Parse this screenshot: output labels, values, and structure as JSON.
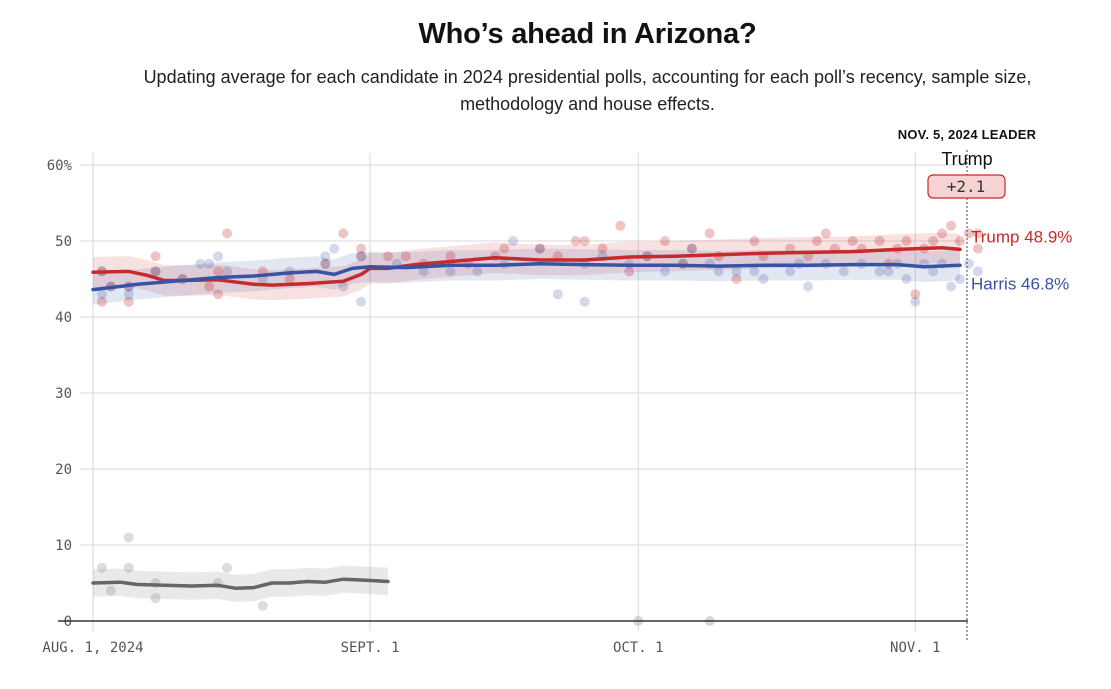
{
  "header": {
    "title": "Who’s ahead in Arizona?",
    "subtitle": "Updating average for each candidate in 2024 presidential polls, accounting for each poll’s recency, sample size, methodology and house effects."
  },
  "leader": {
    "label": "NOV. 5, 2024 LEADER",
    "name": "Trump",
    "margin": "+2.1"
  },
  "colors": {
    "trump": "#c62a2a",
    "harris": "#3753a2",
    "other": "#666666",
    "grid": "#d9d9d9"
  },
  "chart_data": {
    "type": "line",
    "title": "Who’s ahead in Arizona?",
    "xlabel": "",
    "ylabel": "",
    "ylim": [
      0,
      60
    ],
    "xlim_days": [
      0,
      97
    ],
    "x_ticks": [
      {
        "day": 0,
        "label": "AUG. 1, 2024"
      },
      {
        "day": 31,
        "label": "SEPT. 1"
      },
      {
        "day": 61,
        "label": "OCT. 1"
      },
      {
        "day": 92,
        "label": "NOV. 1"
      }
    ],
    "y_ticks": [
      {
        "value": 0,
        "label": "0"
      },
      {
        "value": 10,
        "label": "10"
      },
      {
        "value": 20,
        "label": "20"
      },
      {
        "value": 30,
        "label": "30"
      },
      {
        "value": 40,
        "label": "40"
      },
      {
        "value": 50,
        "label": "50"
      },
      {
        "value": 60,
        "label": "60%"
      }
    ],
    "series": [
      {
        "name": "Trump",
        "end_label": "Trump 48.9%",
        "color": "#c62a2a",
        "band": 2.0,
        "days": [
          0,
          4,
          6,
          8,
          10,
          14,
          18,
          20,
          24,
          28,
          30,
          31,
          33,
          36,
          40,
          45,
          50,
          55,
          60,
          65,
          70,
          75,
          80,
          85,
          90,
          95,
          97
        ],
        "values": [
          45.9,
          46.0,
          45.5,
          44.8,
          44.8,
          44.9,
          44.3,
          44.2,
          44.4,
          44.7,
          45.6,
          46.4,
          46.4,
          46.9,
          47.3,
          47.8,
          47.5,
          47.5,
          47.9,
          48.0,
          48.2,
          48.4,
          48.5,
          48.6,
          48.9,
          49.1,
          48.9
        ]
      },
      {
        "name": "Harris",
        "end_label": "Harris 46.8%",
        "color": "#3753a2",
        "band": 2.0,
        "days": [
          0,
          5,
          10,
          14,
          18,
          22,
          25,
          27,
          29,
          31,
          35,
          40,
          45,
          50,
          55,
          60,
          65,
          70,
          75,
          80,
          85,
          90,
          93,
          97
        ],
        "values": [
          43.6,
          44.3,
          44.8,
          45.2,
          45.4,
          45.8,
          46.0,
          45.6,
          46.4,
          46.6,
          46.5,
          46.8,
          46.8,
          47.0,
          46.9,
          46.8,
          46.8,
          46.7,
          46.8,
          46.8,
          46.9,
          46.9,
          46.6,
          46.8
        ]
      },
      {
        "name": "Other",
        "end_label": "",
        "color": "#666666",
        "band": 1.8,
        "days": [
          0,
          3,
          5,
          8,
          11,
          14,
          16,
          18,
          20,
          22,
          24,
          26,
          28,
          30,
          33
        ],
        "values": [
          5.0,
          5.1,
          4.8,
          4.7,
          4.6,
          4.7,
          4.3,
          4.4,
          5.0,
          5.0,
          5.2,
          5.1,
          5.5,
          5.4,
          5.2
        ]
      }
    ],
    "polls": {
      "trump": [
        [
          1,
          46
        ],
        [
          1,
          42
        ],
        [
          2,
          44
        ],
        [
          4,
          44
        ],
        [
          4,
          42
        ],
        [
          7,
          46
        ],
        [
          7,
          48
        ],
        [
          10,
          45
        ],
        [
          13,
          44
        ],
        [
          14,
          43
        ],
        [
          14,
          46
        ],
        [
          15,
          51
        ],
        [
          19,
          46
        ],
        [
          22,
          45
        ],
        [
          26,
          47
        ],
        [
          28,
          51
        ],
        [
          30,
          49
        ],
        [
          30,
          48
        ],
        [
          33,
          48
        ],
        [
          35,
          48
        ],
        [
          37,
          47
        ],
        [
          40,
          48
        ],
        [
          42,
          47
        ],
        [
          45,
          48
        ],
        [
          46,
          49
        ],
        [
          50,
          49
        ],
        [
          52,
          48
        ],
        [
          54,
          50
        ],
        [
          55,
          50
        ],
        [
          57,
          49
        ],
        [
          59,
          52
        ],
        [
          60,
          46
        ],
        [
          62,
          48
        ],
        [
          64,
          50
        ],
        [
          66,
          47
        ],
        [
          67,
          49
        ],
        [
          69,
          51
        ],
        [
          70,
          48
        ],
        [
          72,
          45
        ],
        [
          74,
          50
        ],
        [
          75,
          48
        ],
        [
          78,
          49
        ],
        [
          80,
          48
        ],
        [
          81,
          50
        ],
        [
          82,
          51
        ],
        [
          83,
          49
        ],
        [
          85,
          50
        ],
        [
          86,
          49
        ],
        [
          88,
          50
        ],
        [
          89,
          47
        ],
        [
          90,
          49
        ],
        [
          91,
          50
        ],
        [
          92,
          43
        ],
        [
          93,
          49
        ],
        [
          94,
          50
        ],
        [
          95,
          51
        ],
        [
          96,
          52
        ],
        [
          97,
          50
        ],
        [
          98,
          51
        ],
        [
          99,
          51
        ],
        [
          99,
          49
        ]
      ],
      "harris": [
        [
          1,
          46
        ],
        [
          1,
          43
        ],
        [
          2,
          44
        ],
        [
          4,
          44
        ],
        [
          4,
          43
        ],
        [
          7,
          46
        ],
        [
          10,
          45
        ],
        [
          12,
          47
        ],
        [
          13,
          47
        ],
        [
          14,
          48
        ],
        [
          15,
          46
        ],
        [
          19,
          45
        ],
        [
          22,
          46
        ],
        [
          26,
          48
        ],
        [
          26,
          47
        ],
        [
          27,
          49
        ],
        [
          28,
          44
        ],
        [
          30,
          42
        ],
        [
          30,
          48
        ],
        [
          34,
          47
        ],
        [
          37,
          46
        ],
        [
          40,
          46
        ],
        [
          43,
          46
        ],
        [
          46,
          47
        ],
        [
          47,
          50
        ],
        [
          50,
          49
        ],
        [
          52,
          43
        ],
        [
          55,
          47
        ],
        [
          55,
          42
        ],
        [
          57,
          48
        ],
        [
          60,
          47
        ],
        [
          62,
          48
        ],
        [
          64,
          46
        ],
        [
          66,
          47
        ],
        [
          67,
          49
        ],
        [
          69,
          47
        ],
        [
          70,
          46
        ],
        [
          72,
          46
        ],
        [
          74,
          46
        ],
        [
          75,
          45
        ],
        [
          78,
          46
        ],
        [
          79,
          47
        ],
        [
          80,
          44
        ],
        [
          82,
          47
        ],
        [
          84,
          46
        ],
        [
          86,
          47
        ],
        [
          88,
          46
        ],
        [
          89,
          46
        ],
        [
          90,
          47
        ],
        [
          91,
          45
        ],
        [
          92,
          42
        ],
        [
          93,
          47
        ],
        [
          94,
          46
        ],
        [
          95,
          47
        ],
        [
          96,
          44
        ],
        [
          97,
          45
        ],
        [
          98,
          47
        ],
        [
          99,
          46
        ]
      ],
      "other": [
        [
          1,
          7
        ],
        [
          2,
          4
        ],
        [
          4,
          7
        ],
        [
          4,
          11
        ],
        [
          7,
          5
        ],
        [
          7,
          3
        ],
        [
          14,
          5
        ],
        [
          15,
          7
        ],
        [
          19,
          2
        ]
      ],
      "zero": [
        [
          61,
          0
        ],
        [
          69,
          0
        ]
      ]
    }
  }
}
